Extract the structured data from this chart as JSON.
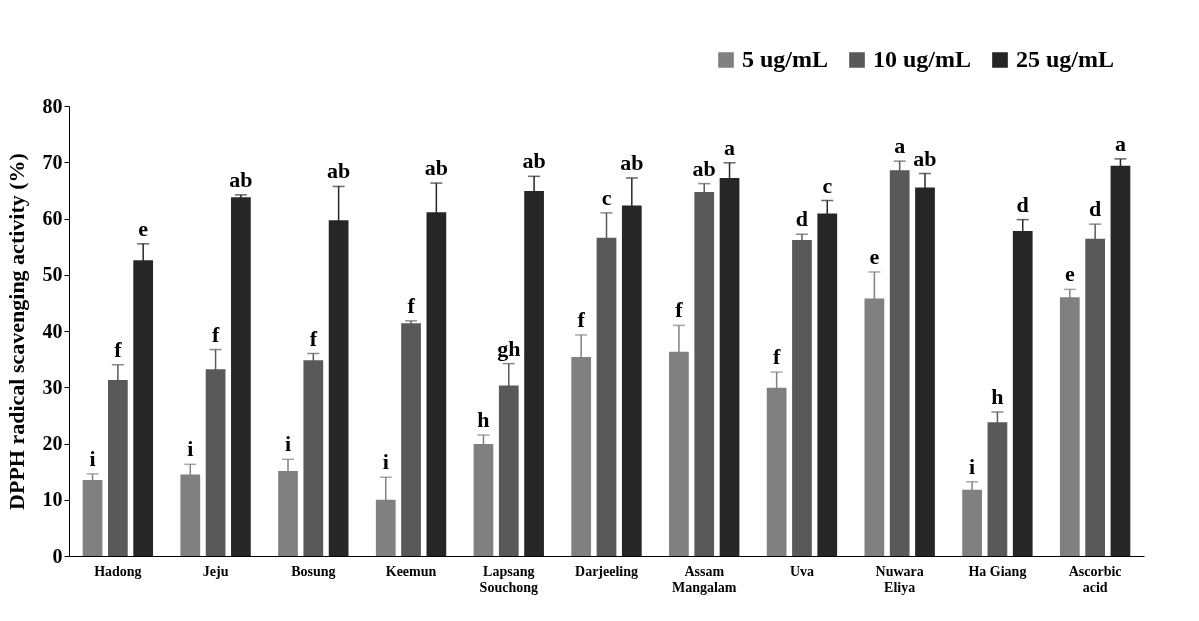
{
  "chart_data": {
    "type": "bar",
    "ylabel": "DPPH radical scavenging activity (%)",
    "categories": [
      "Hadong",
      "Jeju",
      "Bosung",
      "Keemun",
      "Lapsang Souchong",
      "Darjeeling",
      "Assam Mangalam",
      "Uva",
      "Nuwara Eliya",
      "Ha Giang",
      "Ascorbic acid"
    ],
    "series": [
      {
        "name": "5 ug/mL",
        "color": "#808080",
        "values": [
          13.5,
          14.5,
          15.1,
          10.0,
          19.9,
          35.4,
          36.3,
          29.9,
          45.8,
          11.8,
          46.0
        ],
        "errors": [
          1.1,
          1.8,
          2.1,
          4.0,
          1.6,
          3.9,
          4.7,
          2.8,
          4.7,
          1.4,
          1.4
        ],
        "value_labels": [
          "i",
          "i",
          "i",
          "i",
          "h",
          "f",
          "f",
          "f",
          "e",
          "i",
          "e"
        ]
      },
      {
        "name": "10 ug/mL",
        "color": "#595959",
        "values": [
          31.3,
          33.2,
          34.8,
          41.4,
          30.3,
          56.6,
          64.7,
          56.2,
          68.6,
          23.8,
          56.4
        ],
        "errors": [
          2.7,
          3.5,
          1.2,
          0.4,
          3.9,
          4.4,
          1.5,
          1.0,
          1.6,
          1.8,
          2.6
        ],
        "value_labels": [
          "f",
          "f",
          "f",
          "f",
          "gh",
          "c",
          "ab",
          "d",
          "a",
          "h",
          "d"
        ]
      },
      {
        "name": "25 ug/mL",
        "color": "#262626",
        "values": [
          52.6,
          63.8,
          59.7,
          61.1,
          64.9,
          62.3,
          67.2,
          60.9,
          65.5,
          57.8,
          69.4
        ],
        "errors": [
          2.9,
          0.4,
          6.0,
          5.2,
          2.6,
          4.9,
          2.7,
          2.3,
          2.5,
          2.0,
          1.2
        ],
        "value_labels": [
          "e",
          "ab",
          "ab",
          "ab",
          "ab",
          "ab",
          "a",
          "c",
          "ab",
          "d",
          "a"
        ]
      }
    ],
    "ylim": [
      0,
      80
    ],
    "yticks": [
      0,
      10,
      20,
      30,
      40,
      50,
      60,
      70,
      80
    ],
    "grid": false,
    "legend": "top right"
  }
}
